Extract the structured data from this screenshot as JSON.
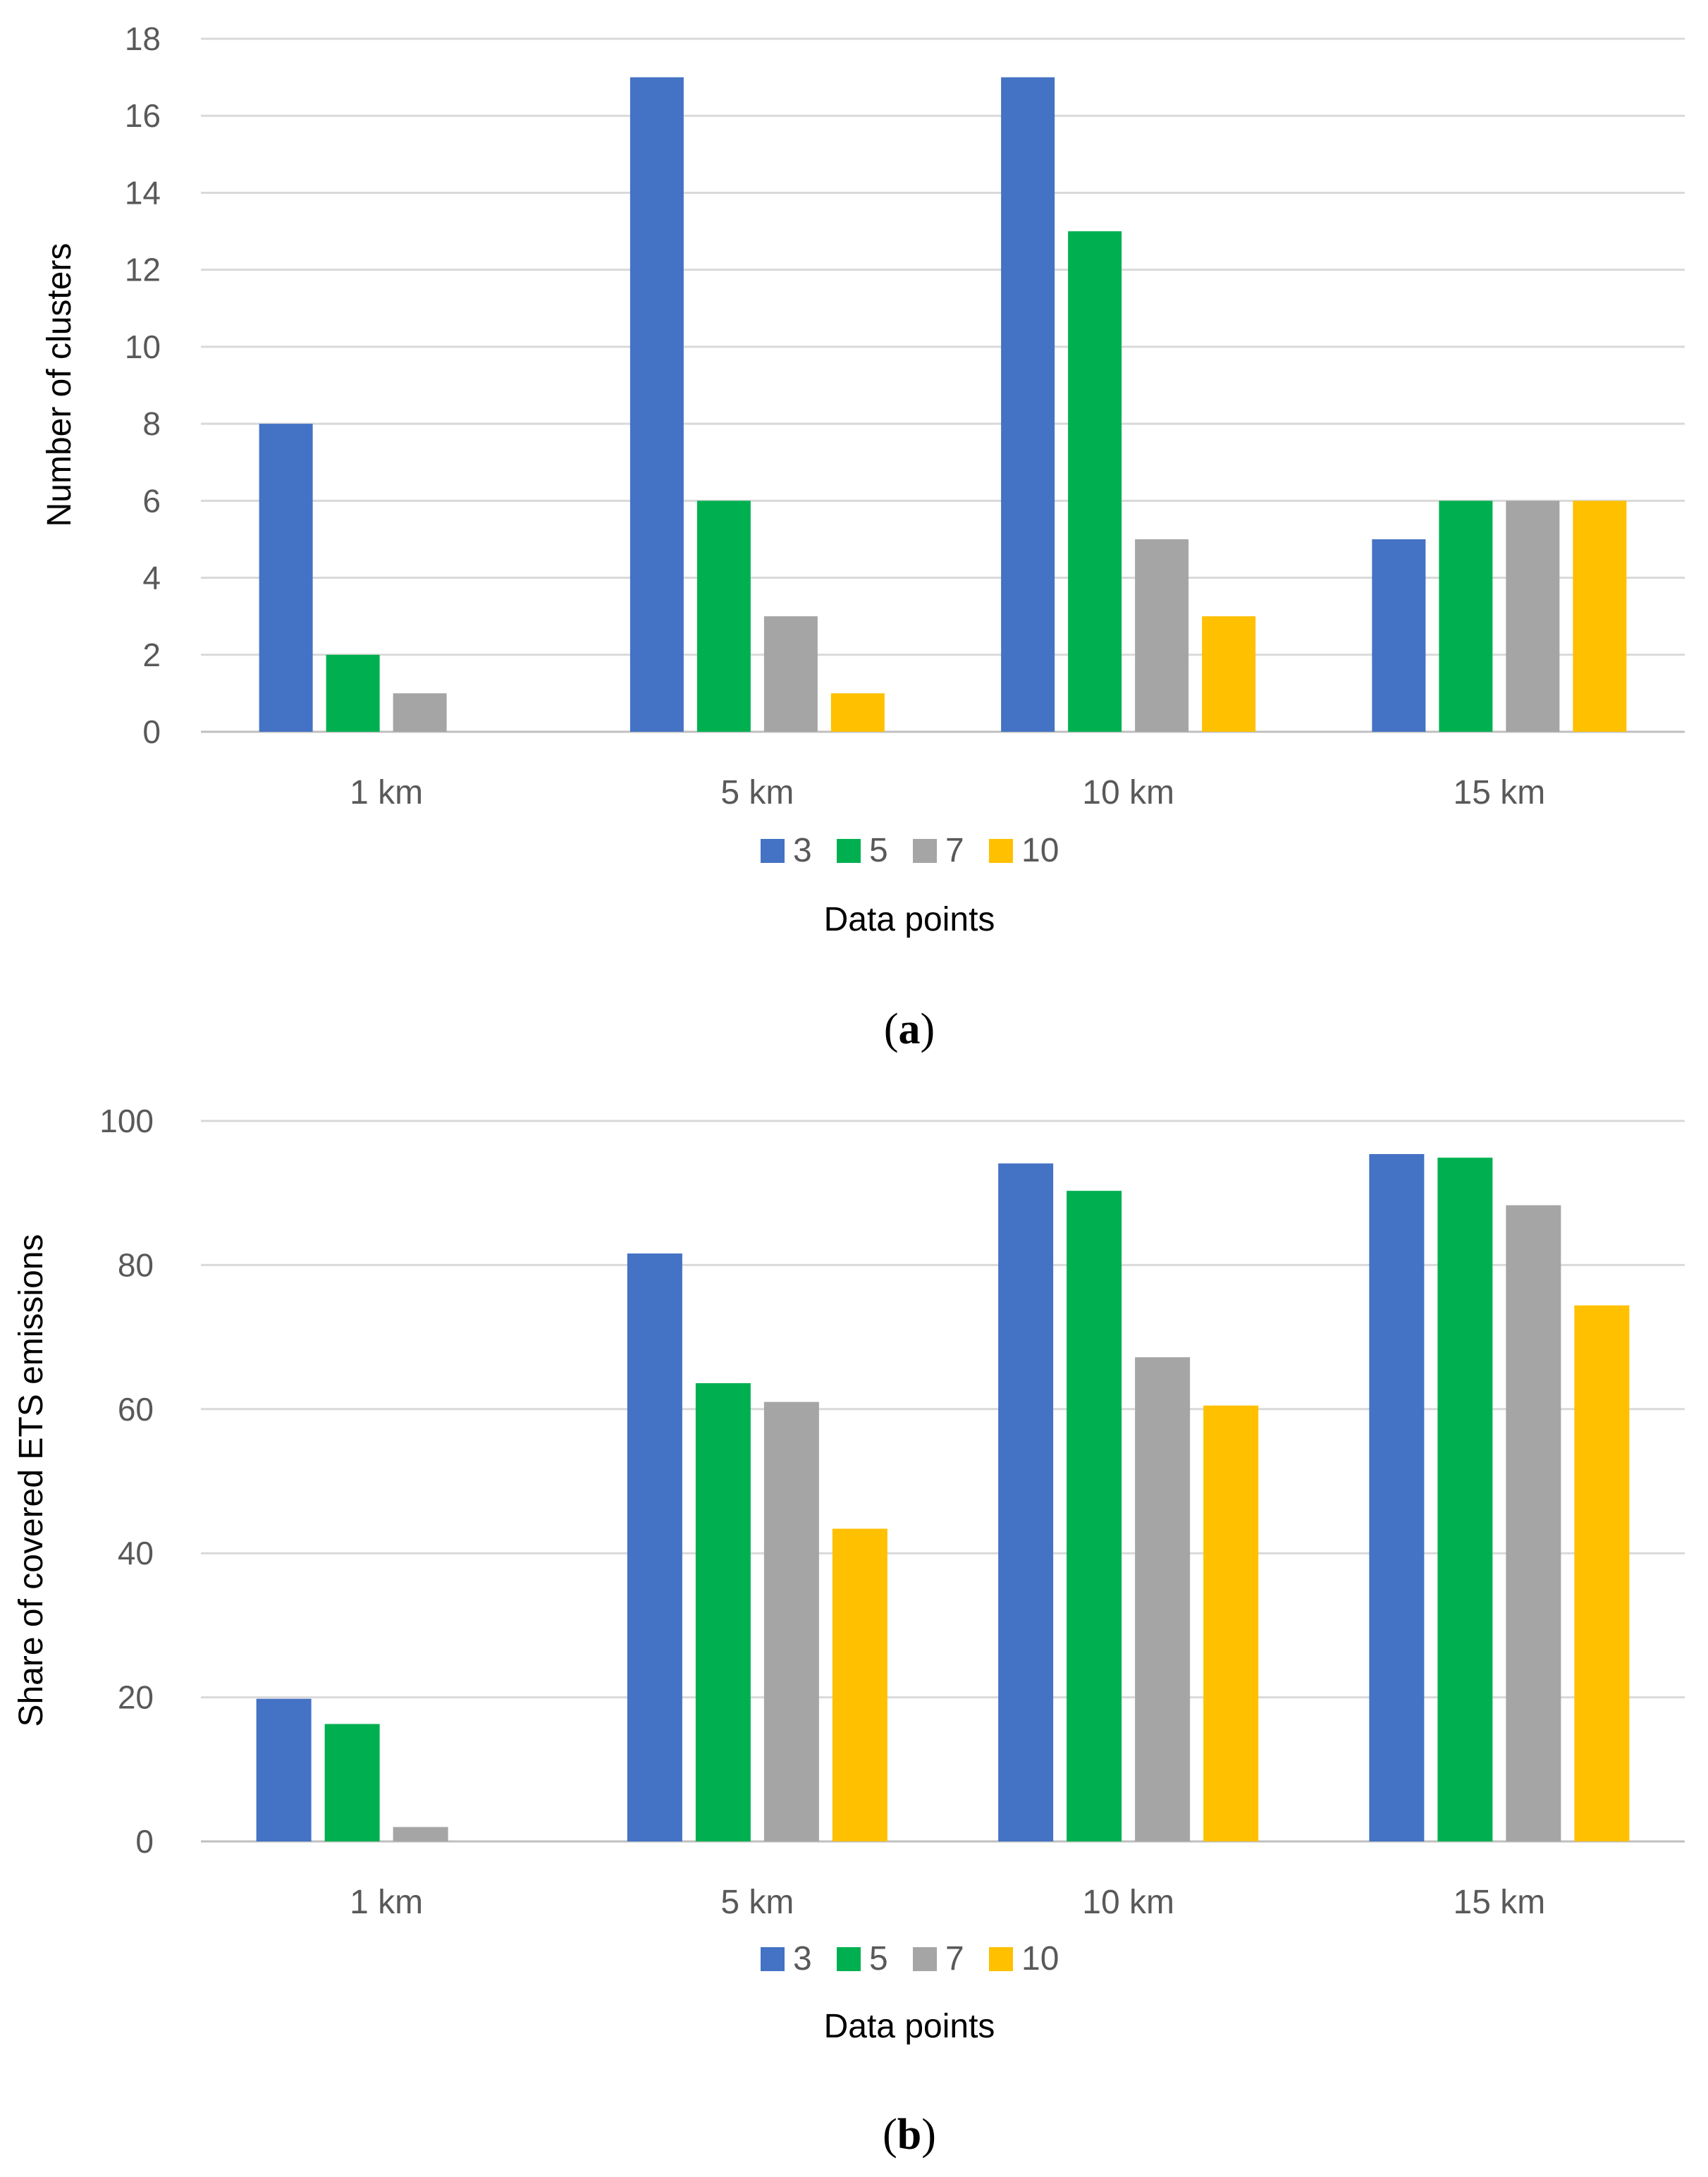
{
  "colors": {
    "3": "#4472c4",
    "5": "#00b050",
    "7": "#a5a5a5",
    "10": "#ffc000"
  },
  "chart_data": [
    {
      "type": "bar",
      "panel_label": "a",
      "panel_open": "(",
      "panel_close": ")",
      "categories": [
        "1 km",
        "5 km",
        "10 km",
        "15 km"
      ],
      "series": [
        {
          "name": "3",
          "values": [
            8,
            17,
            17,
            5
          ]
        },
        {
          "name": "5",
          "values": [
            2,
            6,
            13,
            6
          ]
        },
        {
          "name": "7",
          "values": [
            1,
            3,
            5,
            6
          ]
        },
        {
          "name": "10",
          "values": [
            0,
            1,
            3,
            6
          ]
        }
      ],
      "ylabel": "Number of clusters",
      "xlabel": "Data points",
      "ylim": [
        0,
        18
      ],
      "yticks": [
        "0",
        "2",
        "4",
        "6",
        "8",
        "10",
        "12",
        "14",
        "16",
        "18"
      ],
      "grid": true,
      "legend": "bottom"
    },
    {
      "type": "bar",
      "panel_label": "b",
      "panel_open": "(",
      "panel_close": ")",
      "categories": [
        "1 km",
        "5 km",
        "10 km",
        "15 km"
      ],
      "series": [
        {
          "name": "3",
          "values": [
            19.8,
            81.6,
            94.1,
            95.4
          ]
        },
        {
          "name": "5",
          "values": [
            16.3,
            63.6,
            90.3,
            94.9
          ]
        },
        {
          "name": "7",
          "values": [
            2.0,
            61.0,
            67.2,
            88.3
          ]
        },
        {
          "name": "10",
          "values": [
            0,
            43.4,
            60.5,
            74.4
          ]
        }
      ],
      "ylabel": "Share of covered ETS emissions",
      "xlabel": "Data points",
      "ylim": [
        0,
        100
      ],
      "yticks": [
        "0",
        "20",
        "40",
        "60",
        "80",
        "100"
      ],
      "grid": true,
      "legend": "bottom"
    }
  ]
}
